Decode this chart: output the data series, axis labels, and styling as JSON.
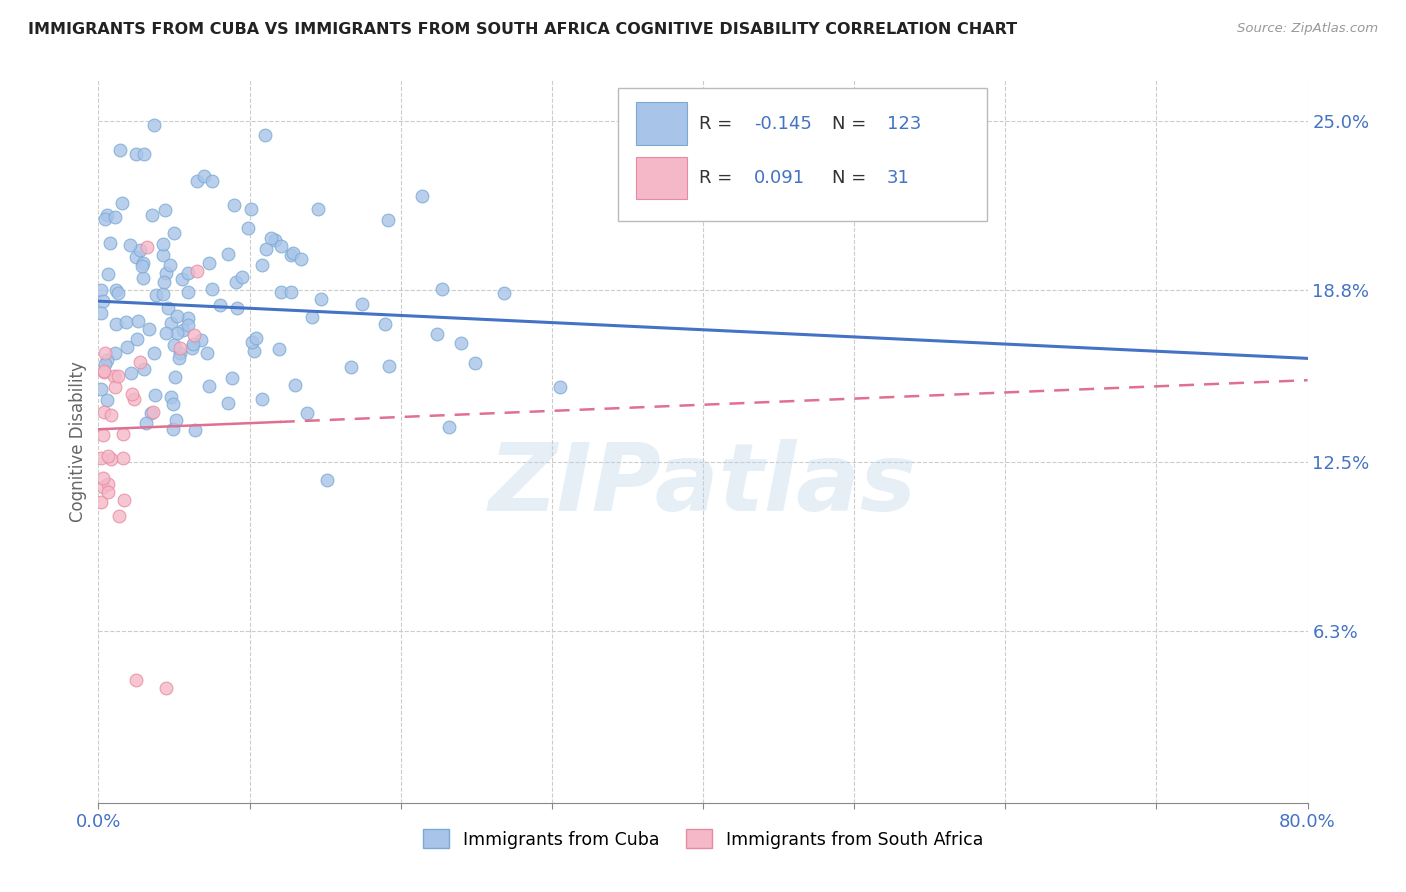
{
  "title": "IMMIGRANTS FROM CUBA VS IMMIGRANTS FROM SOUTH AFRICA COGNITIVE DISABILITY CORRELATION CHART",
  "source": "Source: ZipAtlas.com",
  "ylabel": "Cognitive Disability",
  "ytick_positions": [
    0.063,
    0.125,
    0.188,
    0.25
  ],
  "ytick_labels": [
    "6.3%",
    "12.5%",
    "18.8%",
    "25.0%"
  ],
  "xlim": [
    0.0,
    0.8
  ],
  "ylim": [
    0.0,
    0.265
  ],
  "cuba_color": "#a8c4e8",
  "cuba_edge": "#7aaad4",
  "south_africa_color": "#f4b8c8",
  "south_africa_edge": "#e88aa0",
  "trend_cuba_color": "#4472c4",
  "trend_sa_color": "#e07090",
  "legend_R_cuba": "-0.145",
  "legend_N_cuba": "123",
  "legend_R_sa": "0.091",
  "legend_N_sa": "31",
  "background_color": "#ffffff",
  "grid_color": "#cccccc",
  "title_color": "#222222",
  "axis_label_color": "#4472c4",
  "watermark": "ZIPatlas"
}
